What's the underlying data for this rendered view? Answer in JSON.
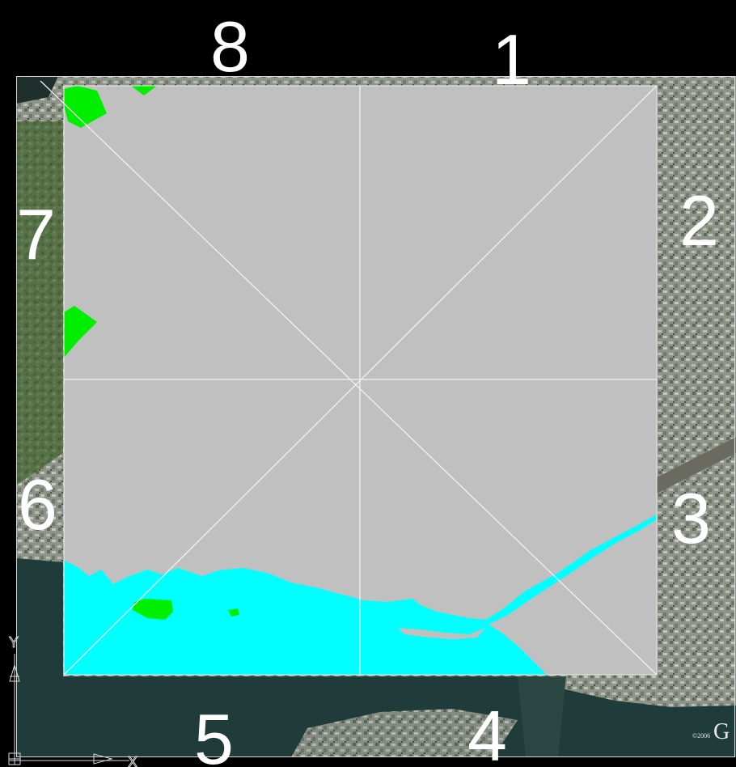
{
  "map": {
    "sector_labels": [
      "1",
      "2",
      "3",
      "4",
      "5",
      "6",
      "7",
      "8"
    ],
    "colors": {
      "background": "#000000",
      "study_area": "#c0c0c0",
      "water": "#00ffff",
      "vegetation": "#00ee00",
      "grid_lines": "#f0f0f0",
      "labels": "#ffffff"
    },
    "attribution": {
      "copyright": "©2006",
      "brand": "G"
    },
    "ucs_icon": {
      "y_axis": "Y",
      "x_axis": "X"
    }
  }
}
